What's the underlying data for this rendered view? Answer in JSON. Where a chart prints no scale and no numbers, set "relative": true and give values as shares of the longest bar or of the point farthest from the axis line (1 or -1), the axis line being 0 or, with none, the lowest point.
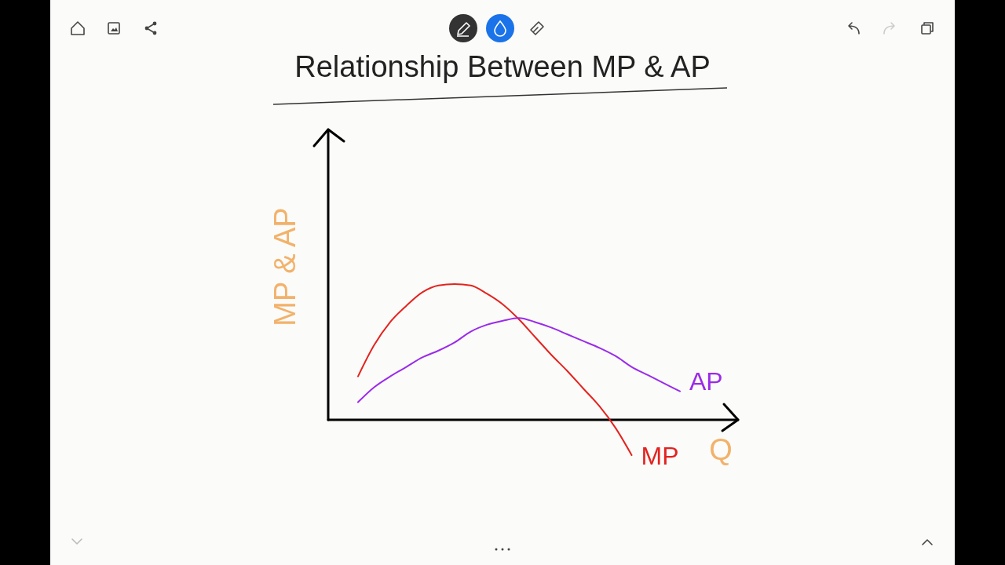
{
  "chart_data": {
    "type": "line",
    "title": "Relationship Between MP & AP",
    "xlabel": "Q",
    "ylabel": "MP & AP",
    "relative": true,
    "categories": [
      null,
      null,
      null,
      null,
      null,
      null,
      null,
      null,
      null,
      null,
      null,
      null,
      null,
      null,
      null,
      null,
      null,
      null,
      null,
      null,
      null
    ],
    "series": [
      {
        "name": "MP",
        "color": "#e3231f",
        "values": [
          0.32,
          0.55,
          0.72,
          0.84,
          0.94,
          0.99,
          1.0,
          0.99,
          0.93,
          0.85,
          0.74,
          0.61,
          0.48,
          0.36,
          0.23,
          0.1,
          -0.06,
          -0.26,
          null,
          null,
          null
        ]
      },
      {
        "name": "AP",
        "color": "#9a2bea",
        "values": [
          0.13,
          0.24,
          0.32,
          0.39,
          0.46,
          0.51,
          0.57,
          0.65,
          0.7,
          0.73,
          0.75,
          0.72,
          0.68,
          0.63,
          0.58,
          0.53,
          0.47,
          0.39,
          0.33,
          0.27,
          0.21
        ]
      }
    ]
  }
}
